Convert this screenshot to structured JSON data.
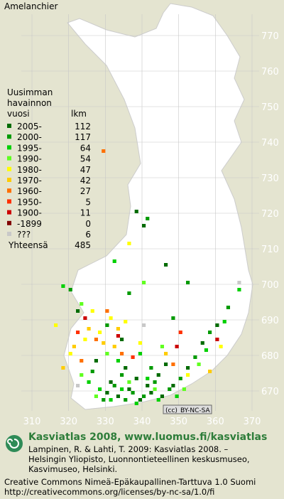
{
  "title": "Amelanchier",
  "legend": {
    "heading": [
      "Uusimman",
      "havainnon"
    ],
    "period_heading": "vuosi",
    "count_heading": "lkm",
    "rows": [
      {
        "label": "2005-",
        "count": 112,
        "color": "#006b00",
        "squares": [
          [
            330,
            669
          ],
          [
            333,
            668
          ],
          [
            336,
            670
          ],
          [
            339,
            667
          ],
          [
            342,
            669
          ],
          [
            345,
            668
          ],
          [
            331,
            672
          ],
          [
            338,
            673
          ],
          [
            344,
            674
          ],
          [
            348,
            671
          ],
          [
            352,
            676
          ],
          [
            327,
            678
          ],
          [
            335,
            676
          ],
          [
            341,
            671
          ],
          [
            346,
            677
          ],
          [
            356,
            683
          ],
          [
            360,
            688
          ],
          [
            338,
            720
          ],
          [
            340,
            716
          ],
          [
            346,
            705
          ],
          [
            322,
            692
          ],
          [
            334,
            684
          ]
        ]
      },
      {
        "label": "2000-",
        "count": 117,
        "color": "#009a00",
        "squares": [
          [
            329,
            667
          ],
          [
            332,
            671
          ],
          [
            335,
            667
          ],
          [
            337,
            669
          ],
          [
            340,
            668
          ],
          [
            343,
            672
          ],
          [
            347,
            670
          ],
          [
            350,
            673
          ],
          [
            326,
            675
          ],
          [
            334,
            674
          ],
          [
            342,
            676
          ],
          [
            354,
            679
          ],
          [
            358,
            686
          ],
          [
            363,
            693
          ],
          [
            330,
            688
          ],
          [
            336,
            697
          ],
          [
            348,
            690
          ],
          [
            352,
            700
          ],
          [
            320,
            698
          ],
          [
            341,
            718
          ]
        ]
      },
      {
        "label": "1995-",
        "count": 64,
        "color": "#00d000",
        "squares": [
          [
            328,
            670
          ],
          [
            331,
            667
          ],
          [
            334,
            670
          ],
          [
            338,
            666
          ],
          [
            341,
            673
          ],
          [
            344,
            667
          ],
          [
            349,
            668
          ],
          [
            325,
            672
          ],
          [
            333,
            678
          ],
          [
            339,
            680
          ],
          [
            357,
            681
          ],
          [
            362,
            689
          ],
          [
            366,
            698
          ],
          [
            332,
            706
          ],
          [
            318,
            699
          ]
        ]
      },
      {
        "label": "1990-",
        "count": 54,
        "color": "#60ff20",
        "squares": [
          [
            327,
            668
          ],
          [
            336,
            672
          ],
          [
            343,
            670
          ],
          [
            351,
            670
          ],
          [
            323,
            674
          ],
          [
            330,
            680
          ],
          [
            345,
            682
          ],
          [
            355,
            677
          ],
          [
            323,
            694
          ],
          [
            340,
            700
          ]
        ]
      },
      {
        "label": "1980-",
        "count": 47,
        "color": "#ffff00",
        "squares": [
          [
            320,
            680
          ],
          [
            324,
            684
          ],
          [
            328,
            686
          ],
          [
            331,
            690
          ],
          [
            335,
            689
          ],
          [
            316,
            688
          ],
          [
            326,
            692
          ],
          [
            339,
            683
          ],
          [
            352,
            674
          ],
          [
            361,
            682
          ],
          [
            336,
            711
          ]
        ]
      },
      {
        "label": "1970-",
        "count": 42,
        "color": "#ffcc00",
        "squares": [
          [
            321,
            682
          ],
          [
            325,
            687
          ],
          [
            329,
            683
          ],
          [
            333,
            687
          ],
          [
            318,
            676
          ],
          [
            332,
            682
          ],
          [
            346,
            680
          ],
          [
            358,
            675
          ]
        ]
      },
      {
        "label": "1960-",
        "count": 27,
        "color": "#ff7000",
        "squares": [
          [
            323,
            678
          ],
          [
            327,
            684
          ],
          [
            334,
            680
          ],
          [
            330,
            692
          ],
          [
            348,
            677
          ],
          [
            329,
            737
          ]
        ]
      },
      {
        "label": "1950-",
        "count": 5,
        "color": "#ff3000",
        "squares": [
          [
            322,
            686
          ],
          [
            337,
            679
          ],
          [
            350,
            686
          ]
        ]
      },
      {
        "label": "1900-",
        "count": 11,
        "color": "#cc0000",
        "squares": [
          [
            324,
            690
          ],
          [
            333,
            685
          ],
          [
            349,
            682
          ],
          [
            360,
            684
          ]
        ]
      },
      {
        "label": "-1899",
        "count": 0,
        "color": "#800000",
        "squares": []
      },
      {
        "label": "???",
        "count": 6,
        "color": "#c8c8c8",
        "squares": [
          [
            340,
            688
          ],
          [
            366,
            700
          ],
          [
            322,
            671
          ]
        ]
      }
    ],
    "total_label": "Yhteensä",
    "total": 485
  },
  "axes": {
    "xticks": [
      310,
      320,
      330,
      340,
      350,
      360,
      370
    ],
    "yticks": [
      670,
      680,
      690,
      700,
      710,
      720,
      730,
      740,
      750,
      760,
      770
    ]
  },
  "license_badge": "BY-NC-SA",
  "footer": {
    "heading": "Kasviatlas 2008, www.luomus.fi/kasviatlas",
    "citation": [
      "Lampinen, R. & Lahti, T. 2009: Kasviatlas 2008. –",
      "Helsingin Yliopisto, Luonnontieteellinen keskusmuseo,",
      "Kasvimuseo, Helsinki."
    ],
    "license": [
      "Creative Commons Nimeä-Epäkaupallinen-Tarttuva 1.0 Suomi",
      "http://creativecommons.org/licenses/by-nc-sa/1.0/fi"
    ]
  }
}
